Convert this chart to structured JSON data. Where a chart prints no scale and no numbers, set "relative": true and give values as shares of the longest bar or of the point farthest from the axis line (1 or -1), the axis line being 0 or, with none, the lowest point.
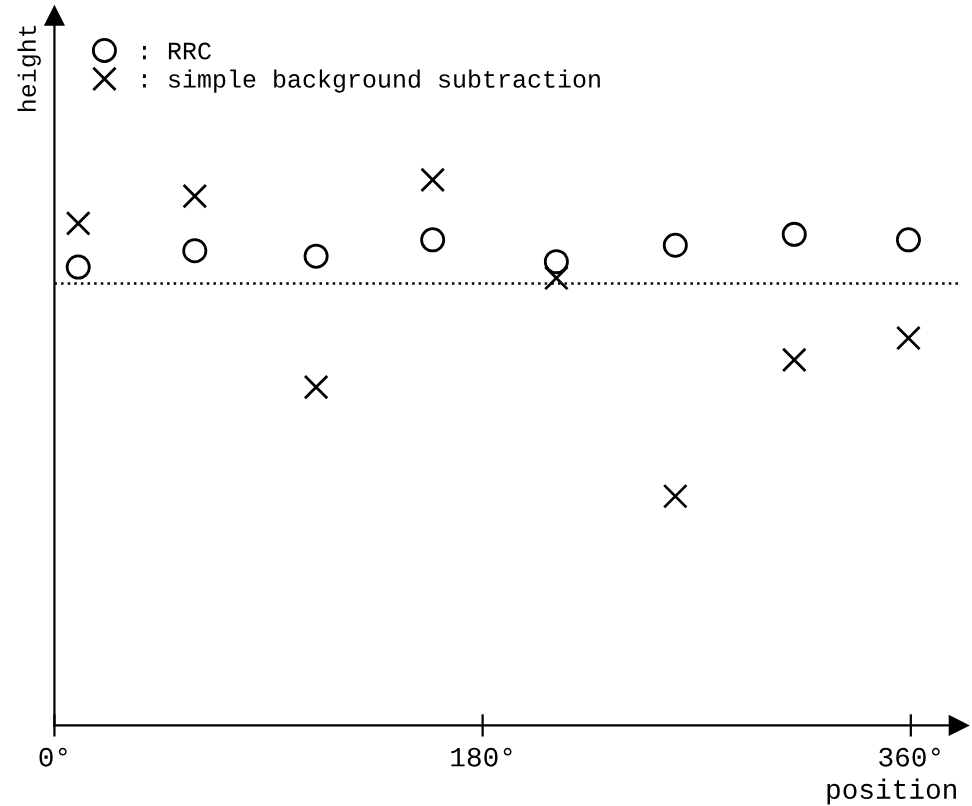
{
  "chart_data": {
    "type": "scatter",
    "relative": true,
    "xlabel": "position",
    "ylabel": "height",
    "xlim": [
      0,
      380
    ],
    "xticks": [
      {
        "value": 0,
        "label": "0°"
      },
      {
        "value": 180,
        "label": "180°"
      },
      {
        "value": 360,
        "label": "360°"
      }
    ],
    "legend": "top left",
    "grid": false,
    "ref_lines": [
      {
        "axis": "y",
        "value": 0.81,
        "line_style": "dotted",
        "color": "#000000"
      }
    ],
    "series": [
      {
        "name": ": RRC",
        "color": "#000000",
        "marker": "circle",
        "x": [
          10,
          59,
          110,
          159,
          211,
          261,
          311,
          359
        ],
        "values": [
          0.84,
          0.87,
          0.86,
          0.89,
          0.85,
          0.88,
          0.9,
          0.89
        ]
      },
      {
        "name": ": simple background subtraction",
        "color": "#000000",
        "marker": "cross",
        "x": [
          10,
          59,
          110,
          159,
          211,
          261,
          311,
          359
        ],
        "values": [
          0.92,
          0.97,
          0.62,
          1.0,
          0.82,
          0.42,
          0.67,
          0.71
        ]
      }
    ]
  }
}
